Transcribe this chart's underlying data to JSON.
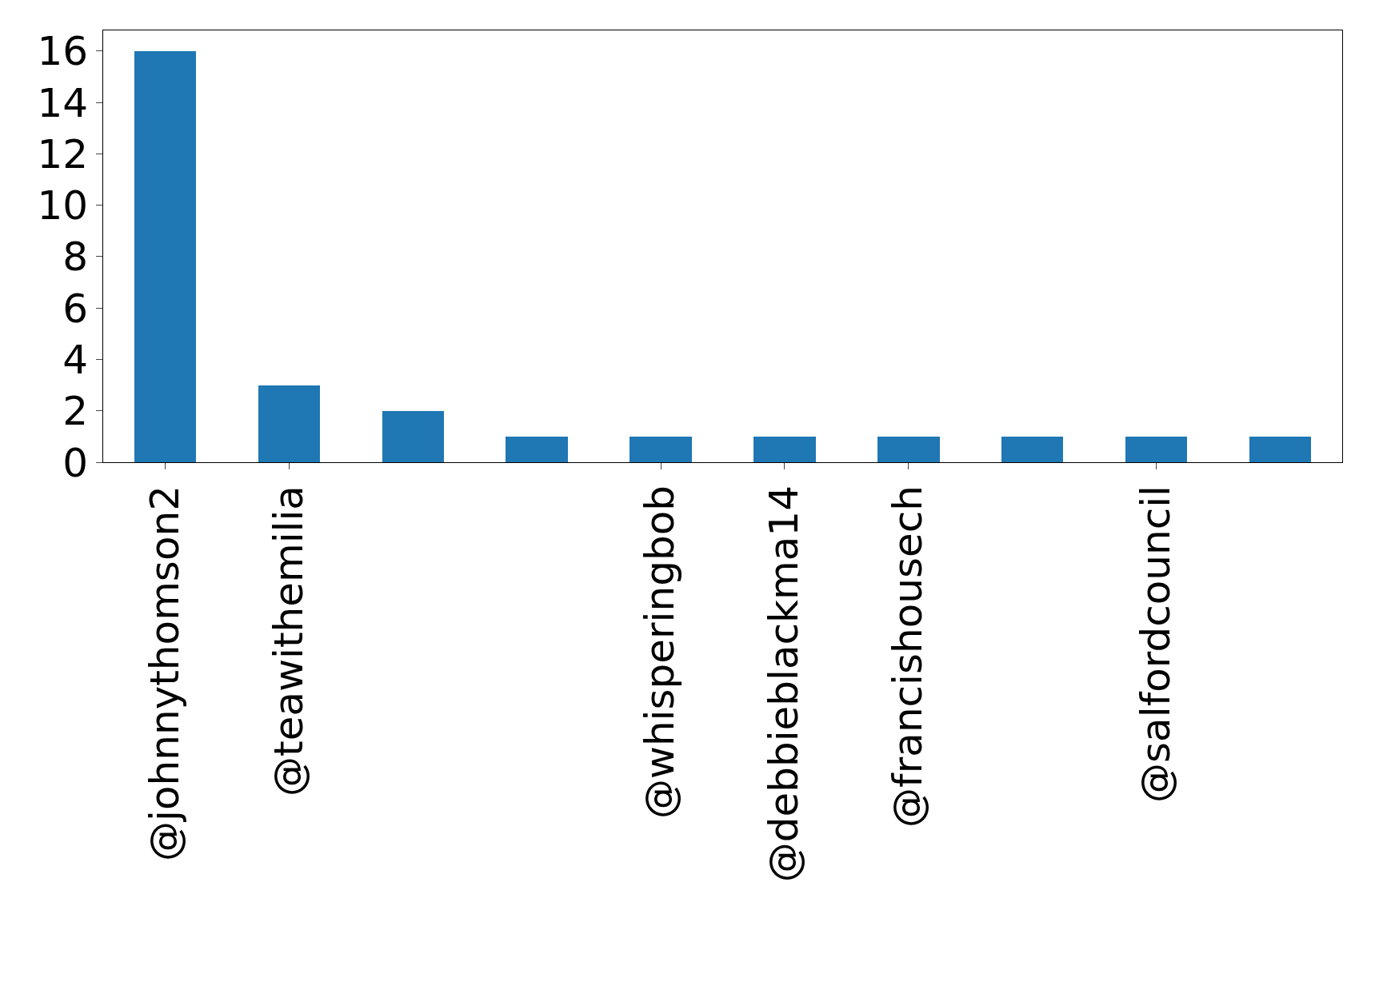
{
  "chart_data": {
    "type": "bar",
    "categories": [
      "@johnnythomson2",
      "@teawithemilia",
      null,
      null,
      "@whisperingbob",
      "@debbieblackma14",
      "@francishousech",
      null,
      "@salfordcouncil",
      null
    ],
    "values": [
      16,
      3,
      2,
      1,
      1,
      1,
      1,
      1,
      1,
      1
    ],
    "color": "#1f77b4",
    "ylim": [
      0,
      16.8
    ],
    "yticks": [
      0,
      2,
      4,
      6,
      8,
      10,
      12,
      14,
      16
    ]
  }
}
